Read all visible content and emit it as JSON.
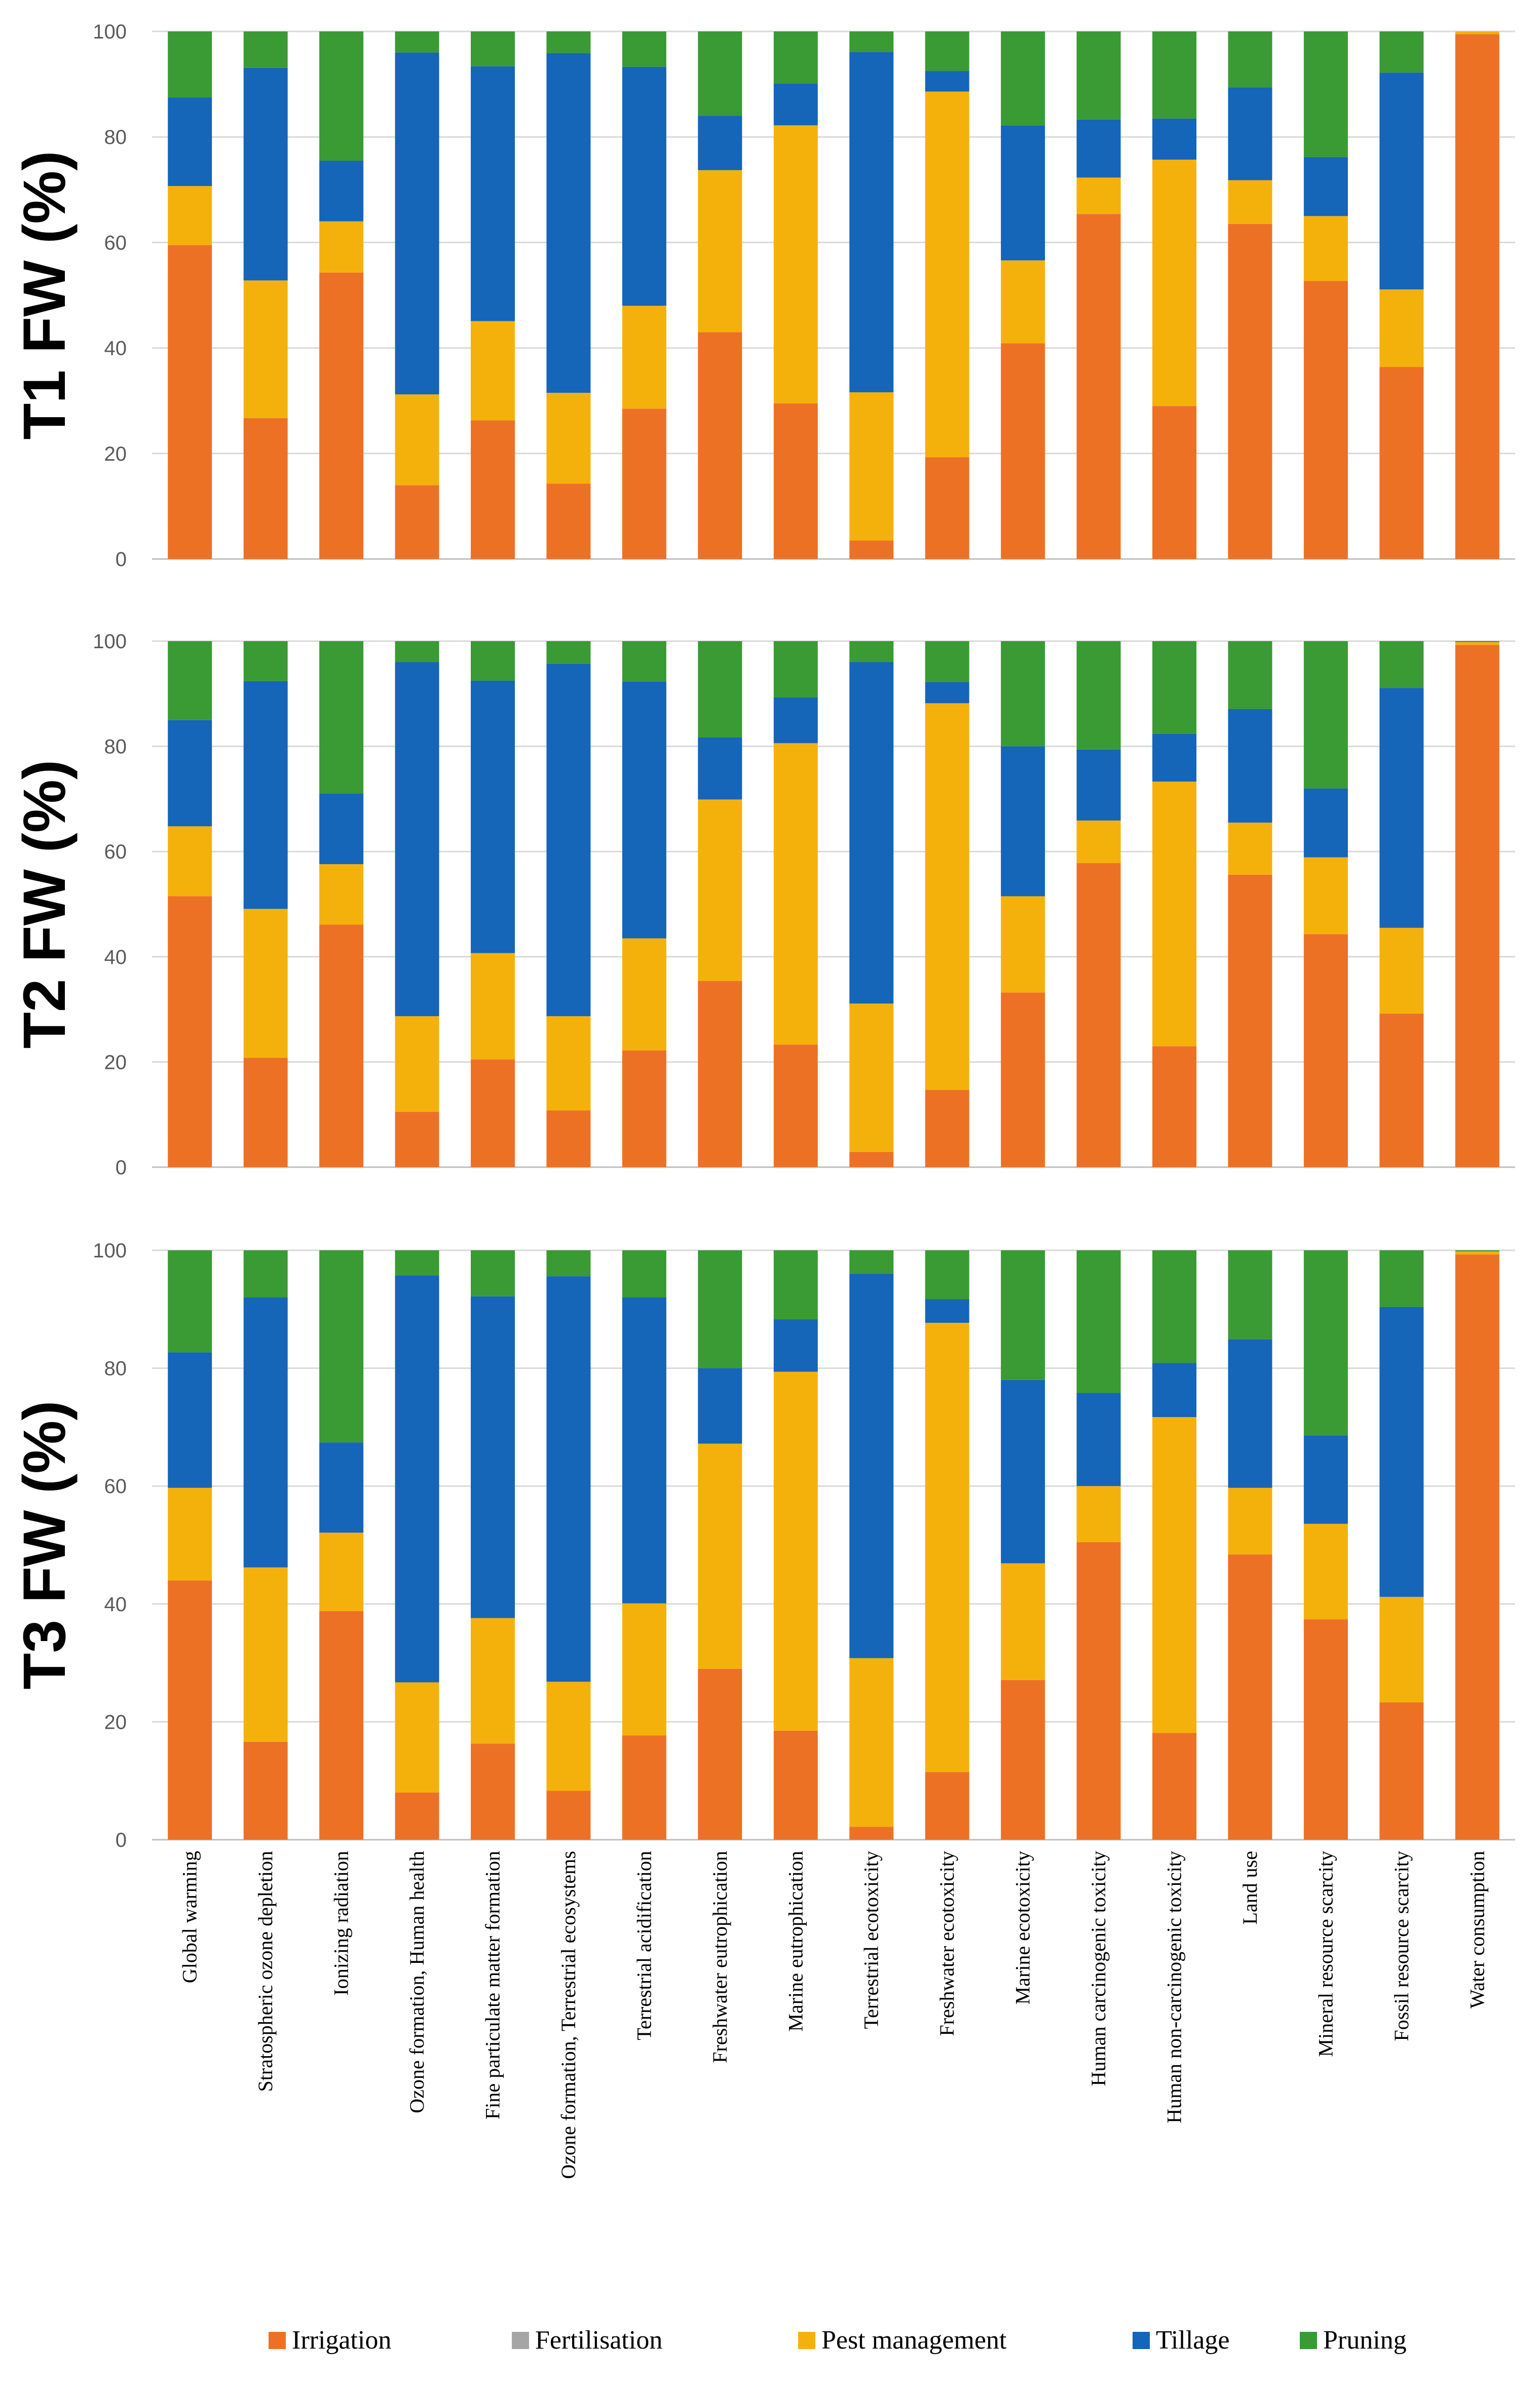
{
  "chart_data": {
    "type": "bar",
    "stacked": true,
    "categories": [
      "Global warming",
      "Stratospheric ozone depletion",
      "Ionizing radiation",
      "Ozone formation, Human health",
      "Fine particulate matter formation",
      "Ozone formation, Terrestrial ecosystems",
      "Terrestrial acidification",
      "Freshwater eutrophication",
      "Marine eutrophication",
      "Terrestrial ecotoxicity",
      "Freshwater ecotoxicity",
      "Marine ecotoxicity",
      "Human carcinogenic toxicity",
      "Human non-carcinogenic toxicity",
      "Land use",
      "Mineral resource scarcity",
      "Fossil resource scarcity",
      "Water consumption"
    ],
    "series_names": [
      "Irrigation",
      "Fertilisation",
      "Pest management",
      "Tillage",
      "Pruning"
    ],
    "colors": {
      "Irrigation": "#ED7125",
      "Fertilisation": "#A5A5A5",
      "Pest management": "#F5B10B",
      "Tillage": "#1565B8",
      "Pruning": "#3A9A34"
    },
    "ylim": [
      0,
      100
    ],
    "yticks": [
      "0",
      "20",
      "40",
      "60",
      "80",
      "100"
    ],
    "legend_position": "bottom",
    "panels": [
      {
        "ylabel": "T1 FW (%)",
        "series": [
          {
            "name": "Irrigation",
            "values": [
              59.5,
              26.7,
              54.3,
              14,
              26.3,
              14.3,
              28.5,
              43,
              29.5,
              3.5,
              19.3,
              40.9,
              65.4,
              29,
              63.5,
              52.7,
              36.4,
              99.5
            ]
          },
          {
            "name": "Fertilisation",
            "values": [
              0,
              0,
              0,
              0,
              0,
              0,
              0,
              0,
              0,
              0,
              0,
              0,
              0,
              0,
              0,
              0,
              0,
              0
            ]
          },
          {
            "name": "Pest management",
            "values": [
              11.2,
              26.1,
              9.7,
              17.2,
              18.8,
              17.2,
              19.5,
              30.7,
              52.7,
              28.1,
              69.3,
              15.7,
              6.9,
              46.7,
              8.3,
              12.3,
              14.7,
              0.5
            ]
          },
          {
            "name": "Tillage",
            "values": [
              16.8,
              40.3,
              11.5,
              64.8,
              48.3,
              64.4,
              45.3,
              10.3,
              7.9,
              64.5,
              3.9,
              25.6,
              11,
              7.8,
              17.6,
              11.2,
              41.1,
              0
            ]
          },
          {
            "name": "Pruning",
            "values": [
              12.5,
              6.9,
              24.5,
              4,
              6.6,
              4.1,
              6.7,
              16,
              9.9,
              3.9,
              7.5,
              17.8,
              16.7,
              16.5,
              10.6,
              23.8,
              7.8,
              0
            ]
          }
        ]
      },
      {
        "ylabel": "T2 FW (%)",
        "series": [
          {
            "name": "Irrigation",
            "values": [
              51.5,
              20.8,
              46.1,
              10.5,
              20.5,
              10.8,
              22.2,
              35.4,
              23.3,
              2.9,
              14.7,
              33.2,
              57.8,
              23,
              55.6,
              44.3,
              29.2,
              99.3
            ]
          },
          {
            "name": "Fertilisation",
            "values": [
              0,
              0,
              0,
              0,
              0,
              0,
              0,
              0,
              0,
              0,
              0,
              0,
              0,
              0,
              0,
              0,
              0,
              0
            ]
          },
          {
            "name": "Pest management",
            "values": [
              13.3,
              28.3,
              11.5,
              18.2,
              20.2,
              17.9,
              21.3,
              34.5,
              57.3,
              28.2,
              73.5,
              18.3,
              8.1,
              50.3,
              9.9,
              14.6,
              16.3,
              0.5
            ]
          },
          {
            "name": "Tillage",
            "values": [
              20.2,
              43.3,
              13.4,
              67.3,
              51.8,
              67,
              48.8,
              11.8,
              8.7,
              64.9,
              4,
              28.5,
              13.5,
              9.1,
              21.6,
              13.1,
              45.6,
              0
            ]
          },
          {
            "name": "Pruning",
            "values": [
              15,
              7.6,
              29,
              4,
              7.5,
              4.3,
              7.7,
              18.3,
              10.7,
              4,
              7.8,
              20,
              20.6,
              17.6,
              12.9,
              28,
              8.9,
              0.2
            ]
          }
        ]
      },
      {
        "ylabel": "T3 FW (%)",
        "series": [
          {
            "name": "Irrigation",
            "values": [
              44,
              16.6,
              38.8,
              8,
              16.3,
              8.3,
              17.7,
              29,
              18.5,
              2.2,
              11.5,
              27.1,
              50.5,
              18.1,
              48.4,
              37.4,
              23.3,
              99.3
            ]
          },
          {
            "name": "Fertilisation",
            "values": [
              0,
              0,
              0,
              0,
              0,
              0,
              0,
              0,
              0,
              0,
              0,
              0,
              0,
              0,
              0,
              0,
              0,
              0
            ]
          },
          {
            "name": "Pest management",
            "values": [
              15.7,
              29.6,
              13.3,
              18.7,
              21.3,
              18.5,
              22.4,
              38.2,
              60.9,
              28.6,
              76.2,
              19.8,
              9.5,
              53.6,
              11.3,
              16.2,
              17.9,
              0.5
            ]
          },
          {
            "name": "Tillage",
            "values": [
              23,
              45.8,
              15.3,
              69,
              54.6,
              68.8,
              51.9,
              12.8,
              8.9,
              65.2,
              4,
              31.1,
              15.8,
              9.2,
              25.2,
              15,
              49.2,
              0
            ]
          },
          {
            "name": "Pruning",
            "values": [
              17.3,
              8,
              32.6,
              4.3,
              7.8,
              4.4,
              8,
              20,
              11.7,
              4,
              8.3,
              22,
              24.2,
              19.1,
              15.1,
              31.4,
              9.6,
              0.2
            ]
          }
        ]
      }
    ]
  }
}
